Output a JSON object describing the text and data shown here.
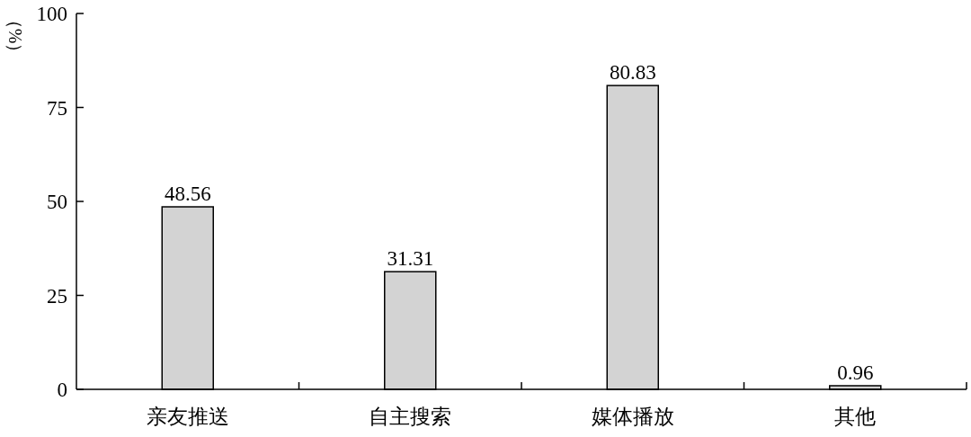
{
  "chart_data": {
    "type": "bar",
    "ylabel": "（%）",
    "categories": [
      "亲友推送",
      "自主搜索",
      "媒体播放",
      "其他"
    ],
    "values": [
      48.56,
      31.31,
      80.83,
      0.96
    ],
    "color": "#d3d3d3",
    "ylim": [
      0,
      100
    ],
    "yticks": [
      0,
      25,
      50,
      75,
      100
    ],
    "data_labels": true
  }
}
